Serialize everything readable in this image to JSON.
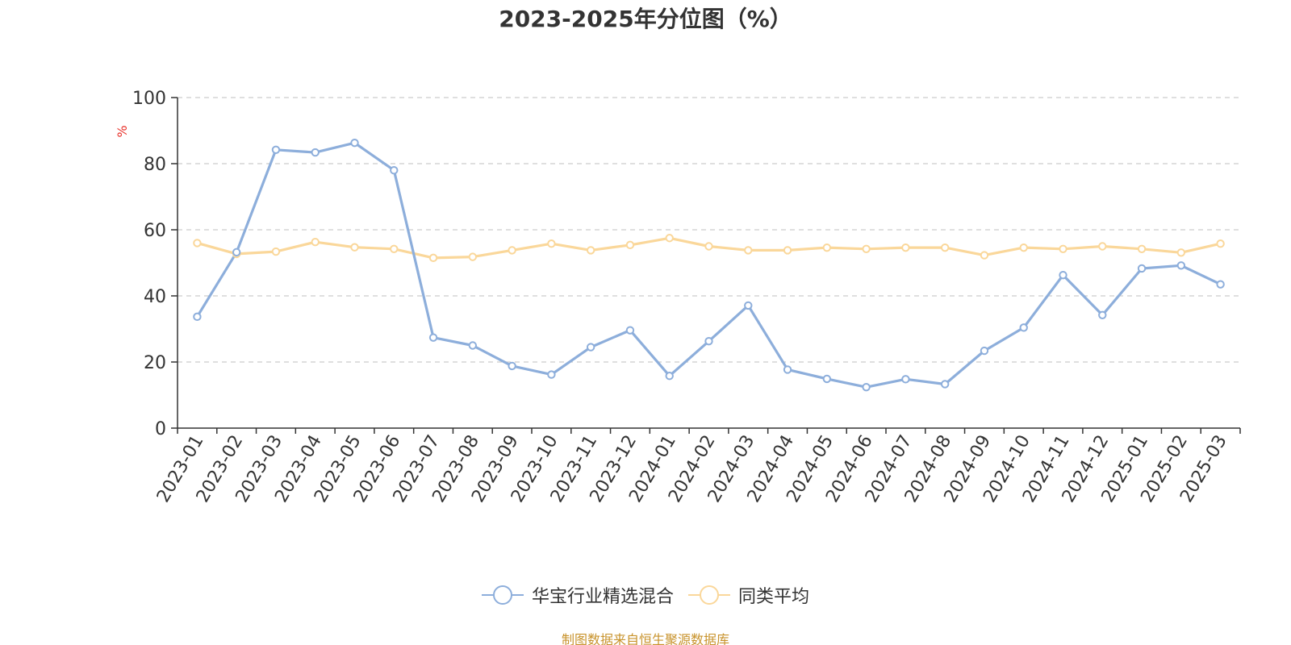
{
  "chart_data": {
    "type": "line",
    "title": "2023-2025年分位图（%）",
    "ylabel": "%",
    "xlabel": "",
    "ylim": [
      0,
      100
    ],
    "yticks": [
      0,
      20,
      40,
      60,
      80,
      100
    ],
    "grid": true,
    "legend_position": "bottom",
    "categories": [
      "2023-01",
      "2023-02",
      "2023-03",
      "2023-04",
      "2023-05",
      "2023-06",
      "2023-07",
      "2023-08",
      "2023-09",
      "2023-10",
      "2023-11",
      "2023-12",
      "2024-01",
      "2024-02",
      "2024-03",
      "2024-04",
      "2024-05",
      "2024-06",
      "2024-07",
      "2024-08",
      "2024-09",
      "2024-10",
      "2024-11",
      "2024-12",
      "2025-01",
      "2025-02",
      "2025-03"
    ],
    "series": [
      {
        "name": "华宝行业精选混合",
        "color": "#8daedb",
        "values": [
          33.7,
          53.2,
          84.2,
          83.4,
          86.3,
          78.0,
          27.4,
          25.0,
          18.8,
          16.2,
          24.5,
          29.6,
          15.8,
          26.3,
          37.1,
          17.7,
          14.9,
          12.4,
          14.8,
          13.3,
          23.4,
          30.4,
          46.3,
          34.2,
          48.3,
          49.2,
          43.5
        ]
      },
      {
        "name": "同类平均",
        "color": "#fad79a",
        "values": [
          56.0,
          52.7,
          53.4,
          56.3,
          54.7,
          54.2,
          51.5,
          51.8,
          53.8,
          55.8,
          53.8,
          55.4,
          57.5,
          55.0,
          53.8,
          53.8,
          54.6,
          54.2,
          54.6,
          54.6,
          52.3,
          54.6,
          54.2,
          55.0,
          54.2,
          53.1,
          55.8
        ]
      }
    ]
  },
  "footer": {
    "source": "制图数据来自恒生聚源数据库"
  }
}
